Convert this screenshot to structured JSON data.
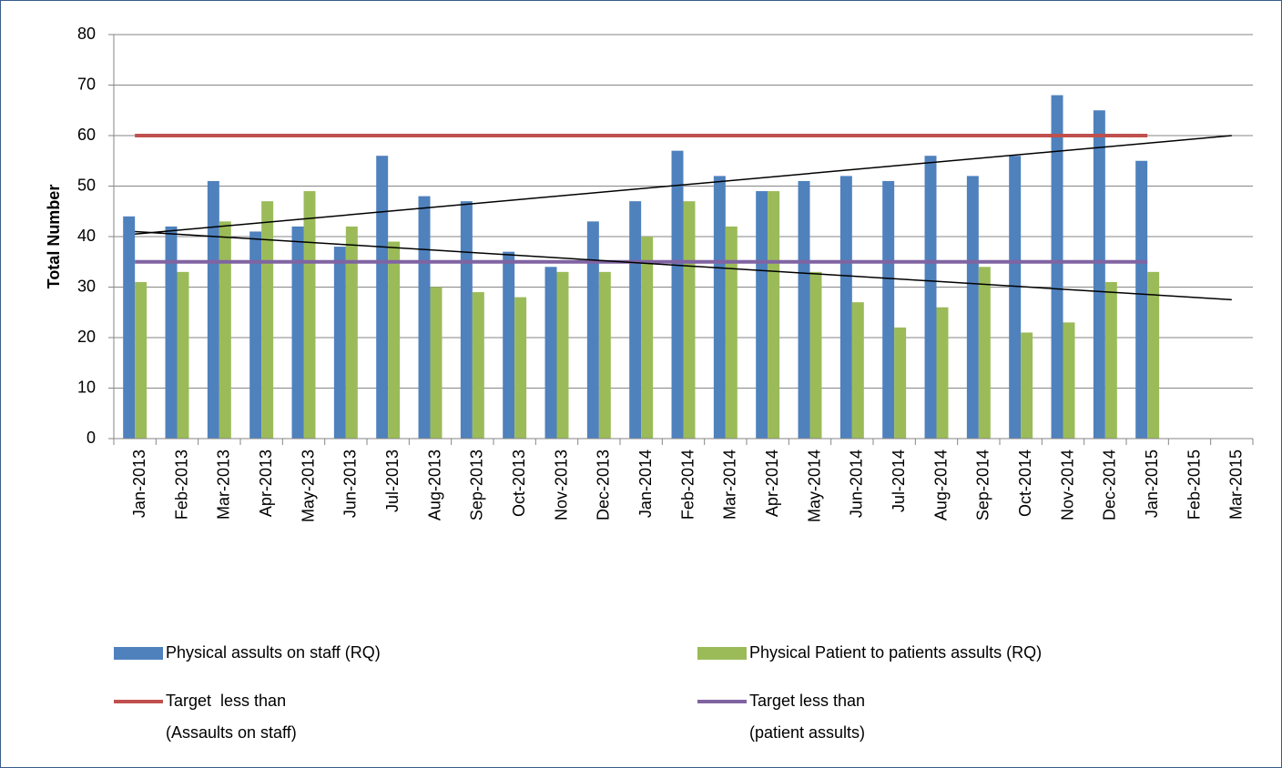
{
  "chart_data": {
    "type": "bar",
    "y_label": "Total Number",
    "categories": [
      "Jan-2013",
      "Feb-2013",
      "Mar-2013",
      "Apr-2013",
      "May-2013",
      "Jun-2013",
      "Jul-2013",
      "Aug-2013",
      "Sep-2013",
      "Oct-2013",
      "Nov-2013",
      "Dec-2013",
      "Jan-2014",
      "Feb-2014",
      "Mar-2014",
      "Apr-2014",
      "May-2014",
      "Jun-2014",
      "Jul-2014",
      "Aug-2014",
      "Sep-2014",
      "Oct-2014",
      "Nov-2014",
      "Dec-2014",
      "Jan-2015",
      "Feb-2015",
      "Mar-2015"
    ],
    "series": [
      {
        "name": "Physical assults on staff (RQ)",
        "kind": "bar",
        "color": "#4f81bd",
        "values": [
          44,
          42,
          51,
          41,
          42,
          38,
          56,
          48,
          47,
          37,
          34,
          43,
          47,
          57,
          52,
          49,
          51,
          52,
          51,
          56,
          52,
          56,
          68,
          65,
          55,
          null,
          null
        ]
      },
      {
        "name": "Physical Patient to patients assults (RQ)",
        "kind": "bar",
        "color": "#9bbb59",
        "values": [
          31,
          33,
          43,
          47,
          49,
          42,
          39,
          30,
          29,
          28,
          33,
          33,
          40,
          47,
          42,
          49,
          33,
          27,
          22,
          26,
          34,
          21,
          23,
          31,
          33,
          null,
          null
        ]
      },
      {
        "name": "Target  less than\n(Assaults on staff)",
        "kind": "line",
        "color": "#c0504d",
        "values": [
          60,
          60,
          60,
          60,
          60,
          60,
          60,
          60,
          60,
          60,
          60,
          60,
          60,
          60,
          60,
          60,
          60,
          60,
          60,
          60,
          60,
          60,
          60,
          60,
          60,
          null,
          null
        ]
      },
      {
        "name": "Target less than\n(patient assults)",
        "kind": "line",
        "color": "#8064a2",
        "values": [
          35,
          35,
          35,
          35,
          35,
          35,
          35,
          35,
          35,
          35,
          35,
          35,
          35,
          35,
          35,
          35,
          35,
          35,
          35,
          35,
          35,
          35,
          35,
          35,
          35,
          null,
          null
        ]
      }
    ],
    "trendlines": [
      {
        "color": "#000000",
        "values": [
          40.5,
          60
        ]
      },
      {
        "color": "#000000",
        "values": [
          41,
          27.5
        ]
      }
    ],
    "ylim": [
      0,
      80
    ],
    "yticks": [
      0,
      10,
      20,
      30,
      40,
      50,
      60,
      70,
      80
    ],
    "grid": true
  }
}
